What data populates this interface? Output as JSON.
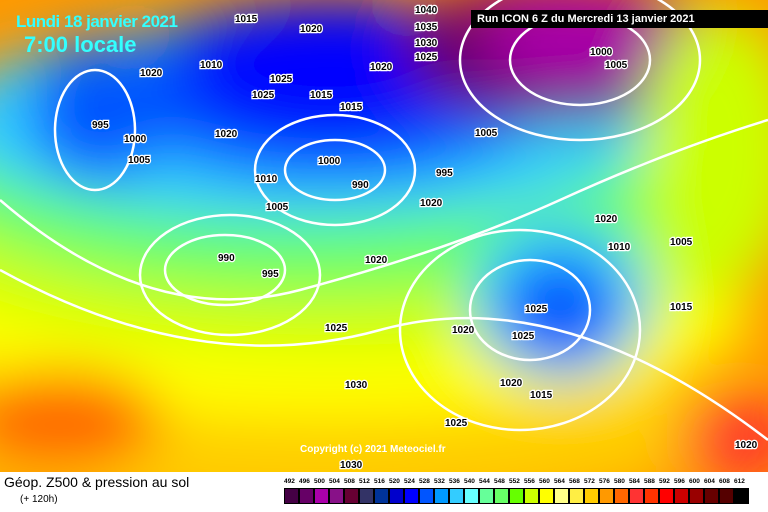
{
  "header": {
    "date": "Lundi 18 janvier 2021",
    "time": "7:00 locale",
    "run": "Run ICON 6 Z du Mercredi 13 janvier 2021"
  },
  "copyright": "Copyright (c) 2021 Meteociel.fr",
  "footer": {
    "title": "Géop. Z500 & pression au sol",
    "subtitle": "(+ 120h)"
  },
  "legend": [
    {
      "v": "492",
      "c": "#440044"
    },
    {
      "v": "496",
      "c": "#660066"
    },
    {
      "v": "500",
      "c": "#aa00aa"
    },
    {
      "v": "504",
      "c": "#881188"
    },
    {
      "v": "508",
      "c": "#660033"
    },
    {
      "v": "512",
      "c": "#333366"
    },
    {
      "v": "516",
      "c": "#003399"
    },
    {
      "v": "520",
      "c": "#0000cc"
    },
    {
      "v": "524",
      "c": "#0000ff"
    },
    {
      "v": "528",
      "c": "#0055ff"
    },
    {
      "v": "532",
      "c": "#0099ff"
    },
    {
      "v": "536",
      "c": "#33ccff"
    },
    {
      "v": "540",
      "c": "#66ffff"
    },
    {
      "v": "544",
      "c": "#66ff99"
    },
    {
      "v": "548",
      "c": "#66ff66"
    },
    {
      "v": "552",
      "c": "#66ff00"
    },
    {
      "v": "556",
      "c": "#ccff00"
    },
    {
      "v": "560",
      "c": "#ffff00"
    },
    {
      "v": "564",
      "c": "#ffff88"
    },
    {
      "v": "568",
      "c": "#ffee44"
    },
    {
      "v": "572",
      "c": "#ffcc00"
    },
    {
      "v": "576",
      "c": "#ff9900"
    },
    {
      "v": "580",
      "c": "#ff6600"
    },
    {
      "v": "584",
      "c": "#ff3333"
    },
    {
      "v": "588",
      "c": "#ff3300"
    },
    {
      "v": "592",
      "c": "#ff0000"
    },
    {
      "v": "596",
      "c": "#cc0000"
    },
    {
      "v": "600",
      "c": "#990000"
    },
    {
      "v": "604",
      "c": "#660000"
    },
    {
      "v": "608",
      "c": "#550000"
    },
    {
      "v": "612",
      "c": "#000000"
    }
  ],
  "isobar_labels": [
    "1020",
    "1010",
    "1015",
    "1020",
    "1040",
    "1035",
    "1030",
    "1025",
    "1000",
    "1005",
    "1025",
    "1025",
    "1015",
    "1020",
    "995",
    "1000",
    "1005",
    "1020",
    "1015",
    "1005",
    "1010",
    "1005",
    "995",
    "990",
    "1020",
    "1020",
    "1000",
    "990",
    "995",
    "1020",
    "1025",
    "1020",
    "1025",
    "1025",
    "1010",
    "1005",
    "1015",
    "1030",
    "1020",
    "1015",
    "1025",
    "1020",
    "1030"
  ]
}
